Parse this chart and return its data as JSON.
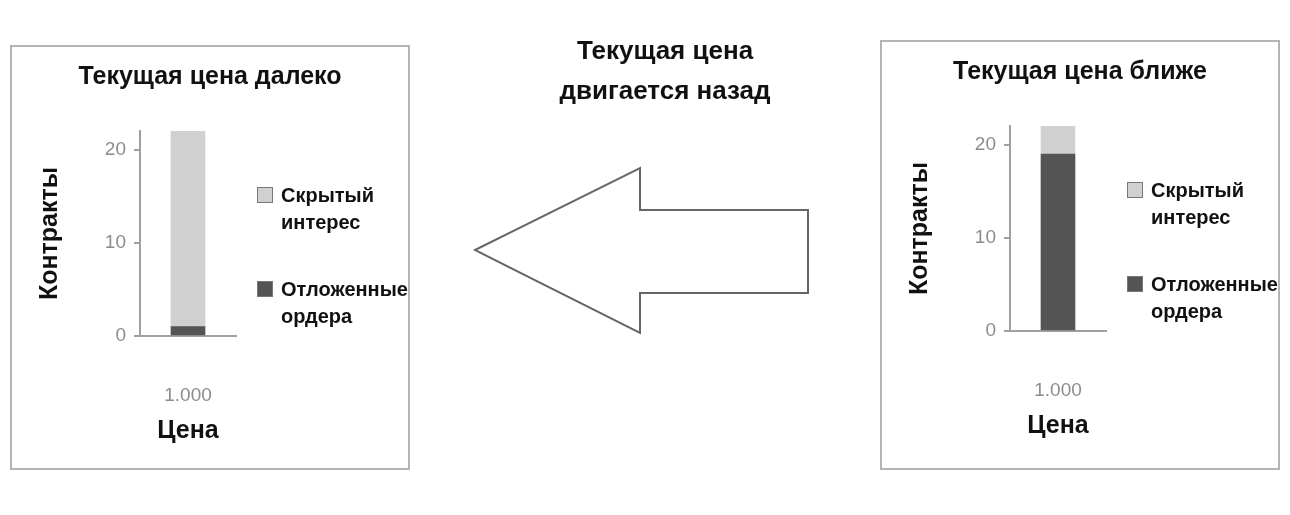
{
  "chart_data": [
    {
      "type": "bar",
      "title": "Текущая цена далеко",
      "xlabel": "Цена",
      "ylabel": "Контракты",
      "categories": [
        "1.000"
      ],
      "series": [
        {
          "name": "Отложенные ордера",
          "color": "#555555",
          "values": [
            1
          ]
        },
        {
          "name": "Скрытый интерес",
          "color": "#d0d0d0",
          "values": [
            21
          ]
        }
      ],
      "stacked": true,
      "ylim": [
        0,
        22
      ],
      "yticks": [
        0,
        10,
        20
      ],
      "legend": "right"
    },
    {
      "type": "other",
      "title": "Текущая цена двигается назад"
    },
    {
      "type": "bar",
      "title": "Текущая цена ближе",
      "xlabel": "Цена",
      "ylabel": "Контракты",
      "categories": [
        "1.000"
      ],
      "series": [
        {
          "name": "Отложенные ордера",
          "color": "#555555",
          "values": [
            19
          ]
        },
        {
          "name": "Скрытый интерес",
          "color": "#d0d0d0",
          "values": [
            3
          ]
        }
      ],
      "stacked": true,
      "ylim": [
        0,
        22
      ],
      "yticks": [
        0,
        10,
        20
      ],
      "legend": "right"
    }
  ]
}
